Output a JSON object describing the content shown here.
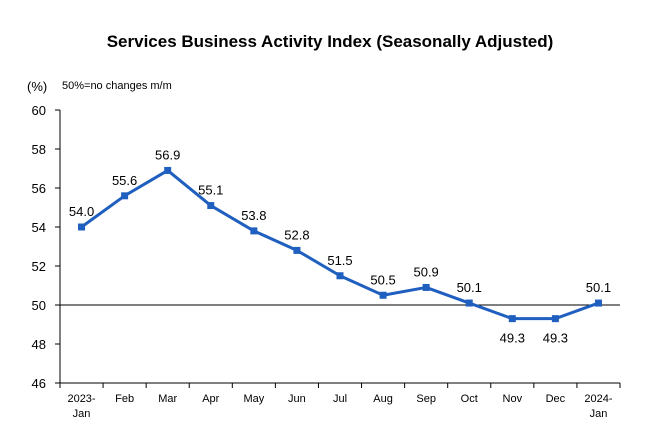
{
  "chart_data": {
    "type": "line",
    "title": "Services Business Activity Index (Seasonally Adjusted)",
    "unit_label": "(%)",
    "note": "50%=no changes m/m",
    "categories": [
      [
        "2023-",
        "Jan"
      ],
      [
        "Feb"
      ],
      [
        "Mar"
      ],
      [
        "Apr"
      ],
      [
        "May"
      ],
      [
        "Jun"
      ],
      [
        "Jul"
      ],
      [
        "Aug"
      ],
      [
        "Sep"
      ],
      [
        "Oct"
      ],
      [
        "Nov"
      ],
      [
        "Dec"
      ],
      [
        "2024-",
        "Jan"
      ]
    ],
    "series": [
      {
        "values": [
          54.0,
          55.6,
          56.9,
          55.1,
          53.8,
          52.8,
          51.5,
          50.5,
          50.9,
          50.1,
          49.3,
          49.3,
          50.1
        ],
        "labels": [
          "54.0",
          "55.6",
          "56.9",
          "55.1",
          "53.8",
          "52.8",
          "51.5",
          "50.5",
          "50.9",
          "50.1",
          "49.3",
          "49.3",
          "50.1"
        ],
        "color": "#1f5fbf"
      }
    ],
    "ylim": [
      46,
      60
    ],
    "yticks": [
      "60",
      "58",
      "56",
      "54",
      "52",
      "50",
      "48",
      "46"
    ],
    "reference_line": 50,
    "grid": false,
    "legend": "none"
  }
}
